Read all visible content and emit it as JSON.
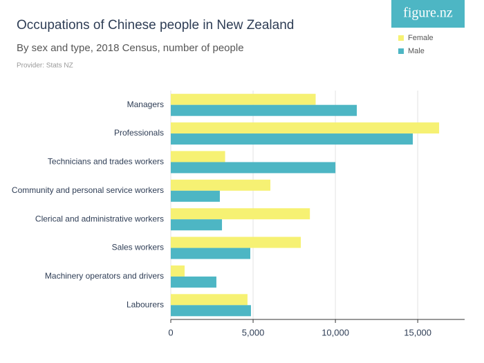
{
  "brand": "figure.nz",
  "chart_data": {
    "type": "hbar",
    "title": "Occupations of Chinese people in New Zealand",
    "subtitle": "By sex and type, 2018 Census, number of people",
    "provider": "Provider: Stats NZ",
    "categories": [
      "Managers",
      "Professionals",
      "Technicians and trades workers",
      "Community and personal service workers",
      "Clerical and administrative workers",
      "Sales workers",
      "Machinery operators and drivers",
      "Labourers"
    ],
    "series": [
      {
        "name": "Female",
        "color": "#f6f173",
        "values": [
          8800,
          16300,
          3300,
          6050,
          8450,
          7900,
          840,
          4660
        ]
      },
      {
        "name": "Male",
        "color": "#4db6c4",
        "values": [
          11300,
          14700,
          10000,
          2980,
          3110,
          4830,
          2770,
          4870
        ]
      }
    ],
    "xlim": [
      0,
      17850
    ],
    "xticks": [
      0,
      {
        "value": 5000,
        "label": "5,000"
      },
      {
        "value": 10000,
        "label": "10,000"
      },
      {
        "value": 15000,
        "label": "15,000"
      }
    ],
    "grid": true
  }
}
